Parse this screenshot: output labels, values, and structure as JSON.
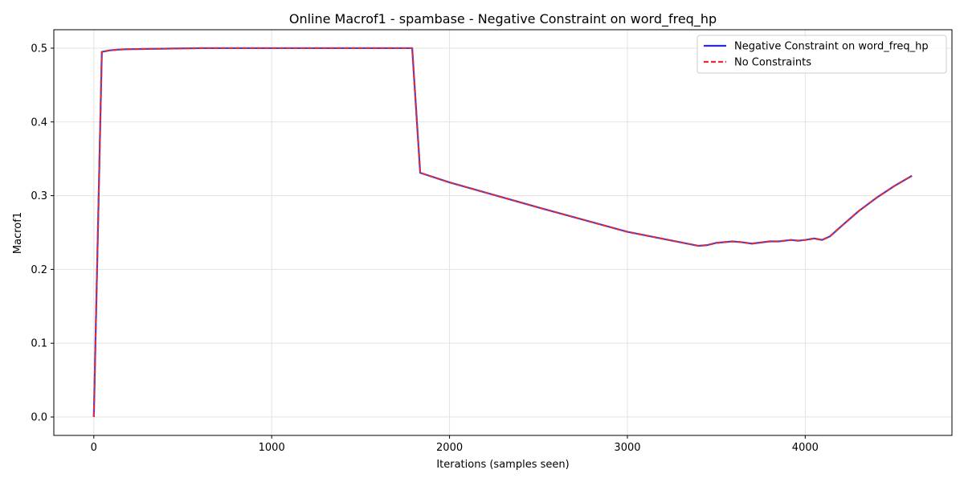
{
  "chart_data": {
    "type": "line",
    "title": "Online Macrof1 - spambase - Negative Constraint on word_freq_hp",
    "xlabel": "Iterations (samples seen)",
    "ylabel": "Macrof1",
    "xlim": [
      -225,
      4825
    ],
    "ylim": [
      -0.025,
      0.525
    ],
    "xticks": [
      0,
      1000,
      2000,
      3000,
      4000
    ],
    "yticks": [
      0.0,
      0.1,
      0.2,
      0.3,
      0.4,
      0.5
    ],
    "xtick_labels": [
      "0",
      "1000",
      "2000",
      "3000",
      "4000"
    ],
    "ytick_labels": [
      "0.0",
      "0.1",
      "0.2",
      "0.3",
      "0.4",
      "0.5"
    ],
    "grid": true,
    "legend_position": "top-right",
    "series": [
      {
        "name": "Negative Constraint on word_freq_hp",
        "color": "#2b2bd9",
        "style": "solid",
        "x": [
          0,
          45,
          90,
          135,
          180,
          300,
          600,
          1000,
          1400,
          1790,
          1835,
          2000,
          2500,
          3000,
          3400,
          3450,
          3500,
          3590,
          3640,
          3700,
          3800,
          3850,
          3920,
          3960,
          4000,
          4050,
          4095,
          4140,
          4200,
          4300,
          4400,
          4500,
          4600
        ],
        "y": [
          0.0,
          0.495,
          0.497,
          0.498,
          0.4985,
          0.499,
          0.5,
          0.5,
          0.5,
          0.5,
          0.331,
          0.318,
          0.284,
          0.251,
          0.232,
          0.233,
          0.236,
          0.238,
          0.237,
          0.235,
          0.238,
          0.238,
          0.24,
          0.239,
          0.24,
          0.242,
          0.24,
          0.245,
          0.258,
          0.279,
          0.297,
          0.313,
          0.327
        ]
      },
      {
        "name": "No Constraints",
        "color": "#ee2a2a",
        "style": "dashed",
        "x": [
          0,
          45,
          90,
          135,
          180,
          300,
          600,
          1000,
          1400,
          1790,
          1835,
          2000,
          2500,
          3000,
          3400,
          3450,
          3500,
          3590,
          3640,
          3700,
          3800,
          3850,
          3920,
          3960,
          4000,
          4050,
          4095,
          4140,
          4200,
          4300,
          4400,
          4500,
          4600
        ],
        "y": [
          0.0,
          0.495,
          0.497,
          0.498,
          0.4985,
          0.499,
          0.5,
          0.5,
          0.5,
          0.5,
          0.331,
          0.318,
          0.284,
          0.251,
          0.232,
          0.233,
          0.236,
          0.238,
          0.237,
          0.235,
          0.238,
          0.238,
          0.24,
          0.239,
          0.24,
          0.242,
          0.24,
          0.245,
          0.258,
          0.279,
          0.297,
          0.313,
          0.327
        ]
      }
    ]
  }
}
